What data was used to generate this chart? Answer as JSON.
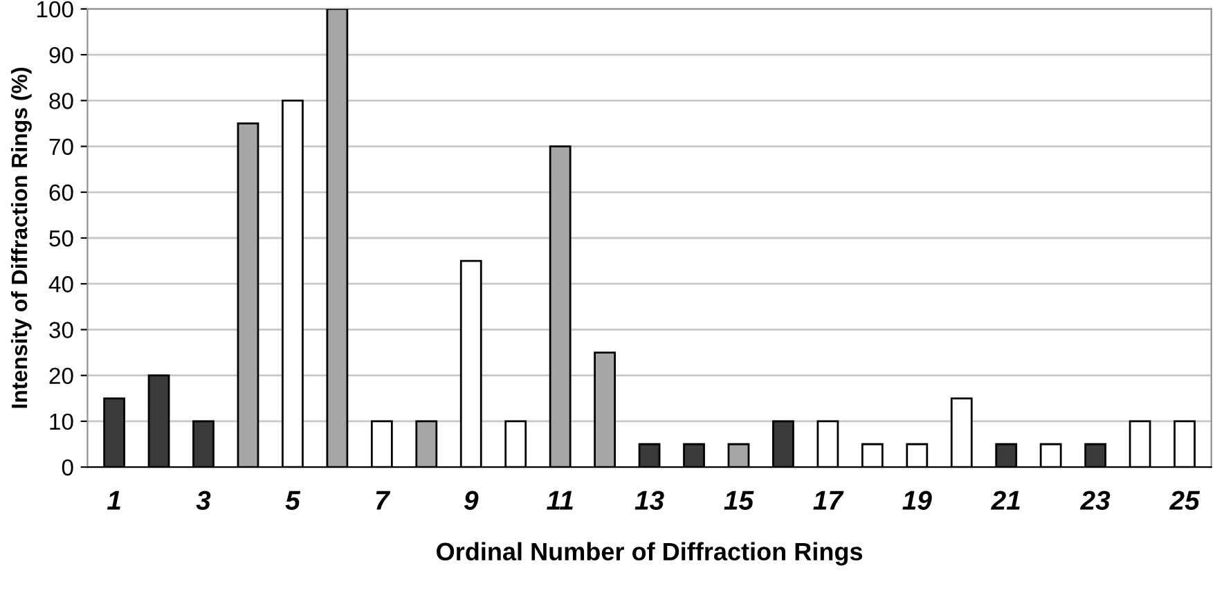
{
  "chart_data": {
    "type": "bar",
    "xlabel": "Ordinal Number of Diffraction Rings",
    "ylabel": "Intensity of Diffraction Rings (%)",
    "categories": [
      "1",
      null,
      "3",
      null,
      "5",
      null,
      "7",
      null,
      "9",
      null,
      "11",
      null,
      "13",
      null,
      "15",
      null,
      "17",
      null,
      "19",
      null,
      "21",
      null,
      "23",
      null,
      "25"
    ],
    "values": [
      15,
      20,
      10,
      75,
      80,
      100,
      10,
      10,
      45,
      10,
      70,
      25,
      5,
      5,
      5,
      10,
      10,
      5,
      5,
      15,
      5,
      5,
      5,
      10,
      10
    ],
    "colors": [
      "#3a3a3a",
      "#3a3a3a",
      "#3a3a3a",
      "#a6a6a6",
      "#ffffff",
      "#a6a6a6",
      "#ffffff",
      "#a6a6a6",
      "#ffffff",
      "#ffffff",
      "#a6a6a6",
      "#a6a6a6",
      "#3a3a3a",
      "#3a3a3a",
      "#a6a6a6",
      "#3a3a3a",
      "#ffffff",
      "#ffffff",
      "#ffffff",
      "#ffffff",
      "#3a3a3a",
      "#ffffff",
      "#3a3a3a",
      "#ffffff",
      "#ffffff"
    ],
    "ylim": [
      0,
      100
    ],
    "yticks": [
      0,
      10,
      20,
      30,
      40,
      50,
      60,
      70,
      80,
      90,
      100
    ],
    "grid": "y"
  }
}
